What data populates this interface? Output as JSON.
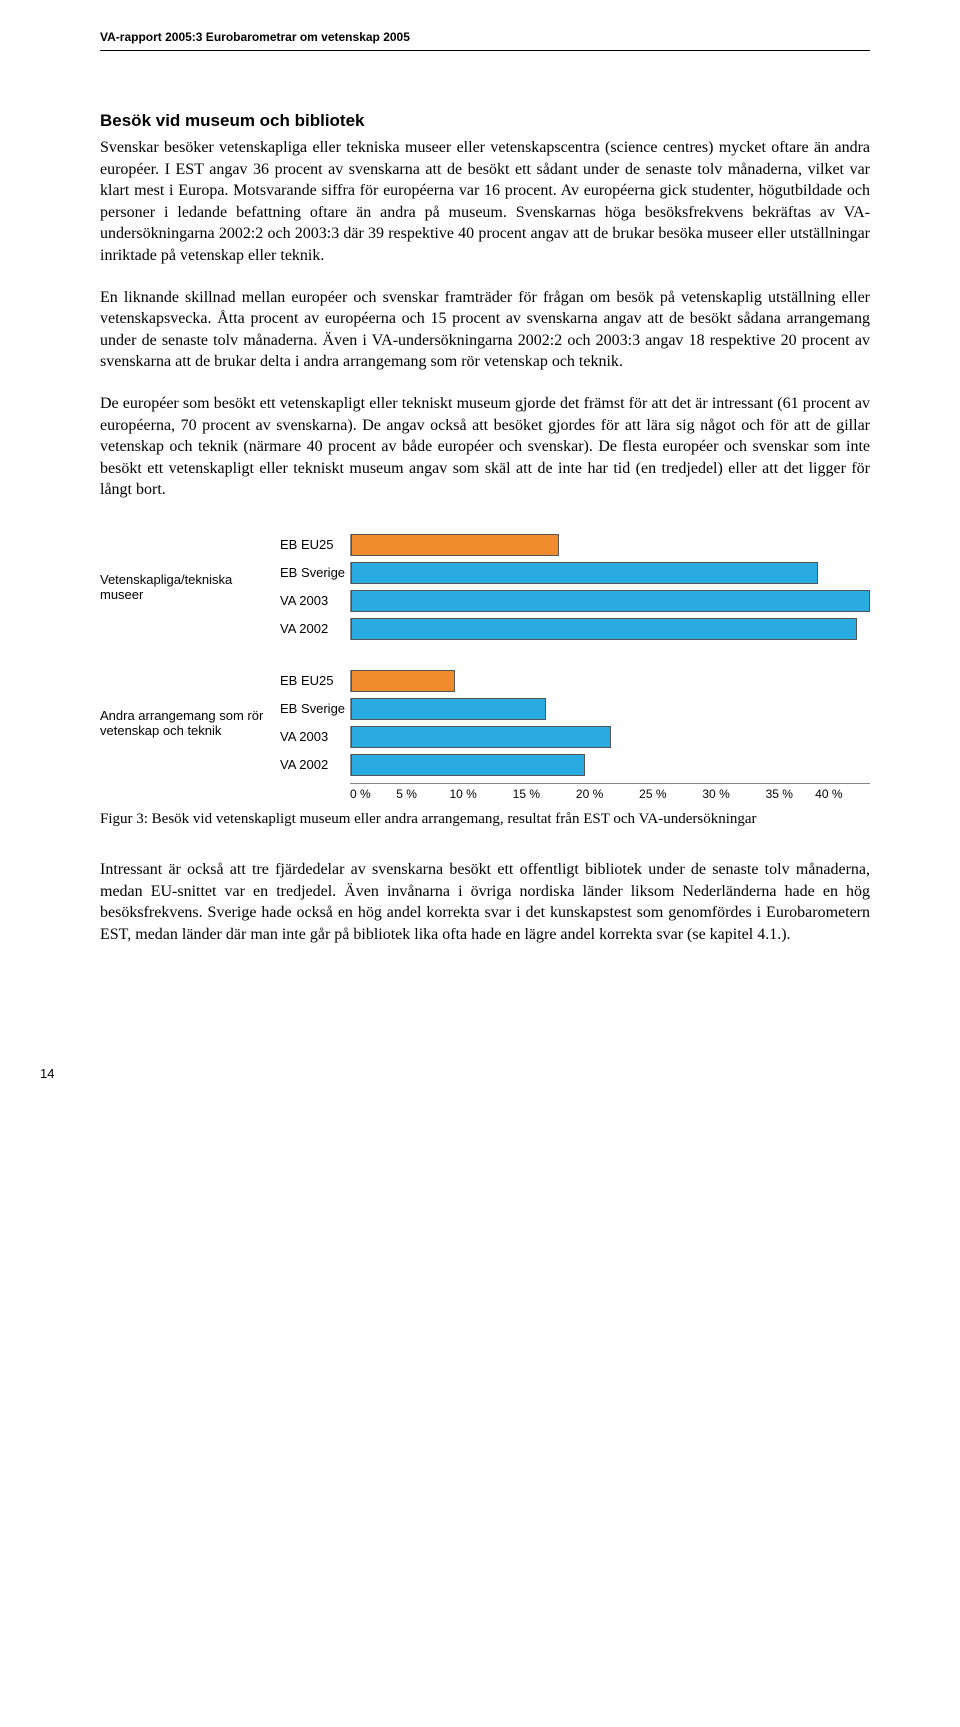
{
  "header": "VA-rapport 2005:3 Eurobarometrar om vetenskap 2005",
  "section_title": "Besök vid museum och bibliotek",
  "p1": "Svenskar besöker vetenskapliga eller tekniska museer eller vetenskapscentra (science centres) mycket oftare än andra européer. I EST angav 36 procent av svenskarna att de besökt ett sådant under de senaste tolv månaderna, vilket var klart mest i Europa. Motsvarande siffra för européerna var 16 procent. Av européerna gick studenter, högutbildade och personer i ledande befattning oftare än andra på museum. Svenskarnas höga besöksfrekvens bekräftas av VA-undersökningarna 2002:2 och 2003:3 där 39 respektive 40 procent angav att de brukar besöka museer eller utställningar inriktade på vetenskap eller teknik.",
  "p2": "En liknande skillnad mellan européer och svenskar framträder för frågan om besök på vetenskaplig utställning eller vetenskapsvecka. Åtta procent av européerna och 15 procent av svenskarna angav att de besökt sådana arrangemang under de senaste tolv månaderna. Även i VA-undersökningarna 2002:2 och 2003:3 angav 18 respektive 20 procent av svenskarna att de brukar delta i andra arrangemang som rör vetenskap och teknik.",
  "p3": "De européer som besökt ett vetenskapligt eller tekniskt museum gjorde det främst för att det är intressant (61 procent av européerna, 70 procent av svenskarna). De angav också att besöket gjordes för att lära sig något och för att de gillar vetenskap och teknik (närmare 40 procent av både européer och svenskar). De flesta européer och svenskar som inte besökt ett vetenskapligt eller tekniskt museum angav som skäl att de inte har tid (en tredjedel) eller att det ligger för långt bort.",
  "chart": {
    "xmax": 40,
    "ticks": [
      "0 %",
      "5 %",
      "10 %",
      "15 %",
      "20 %",
      "25 %",
      "30 %",
      "35 %",
      "40 %"
    ],
    "color_eu": "#f08c2e",
    "color_se": "#29abe2",
    "groups": [
      {
        "label": "Vetenskapliga/tekniska museer",
        "bars": [
          {
            "name": "EB EU25",
            "value": 16,
            "color": "#f08c2e"
          },
          {
            "name": "EB Sverige",
            "value": 36,
            "color": "#29abe2"
          },
          {
            "name": "VA 2003",
            "value": 40,
            "color": "#29abe2"
          },
          {
            "name": "VA 2002",
            "value": 39,
            "color": "#29abe2"
          }
        ]
      },
      {
        "label": "Andra arrangemang som rör vetenskap och teknik",
        "bars": [
          {
            "name": "EB EU25",
            "value": 8,
            "color": "#f08c2e"
          },
          {
            "name": "EB Sverige",
            "value": 15,
            "color": "#29abe2"
          },
          {
            "name": "VA 2003",
            "value": 20,
            "color": "#29abe2"
          },
          {
            "name": "VA 2002",
            "value": 18,
            "color": "#29abe2"
          }
        ]
      }
    ]
  },
  "caption": "Figur 3: Besök vid vetenskapligt museum eller andra arrangemang, resultat från EST och VA-undersökningar",
  "p4": "Intressant är också att tre fjärdedelar av svenskarna besökt ett offentligt bibliotek under de senaste tolv månaderna, medan EU-snittet var en tredjedel. Även invånarna i övriga nordiska länder liksom Nederländerna hade en hög besöksfrekvens. Sverige hade också en hög andel korrekta svar i det kunskapstest som genomfördes i Eurobarometern EST, medan länder där man inte går på bibliotek lika ofta hade en lägre andel korrekta svar (se kapitel 4.1.).",
  "page_number": "14"
}
